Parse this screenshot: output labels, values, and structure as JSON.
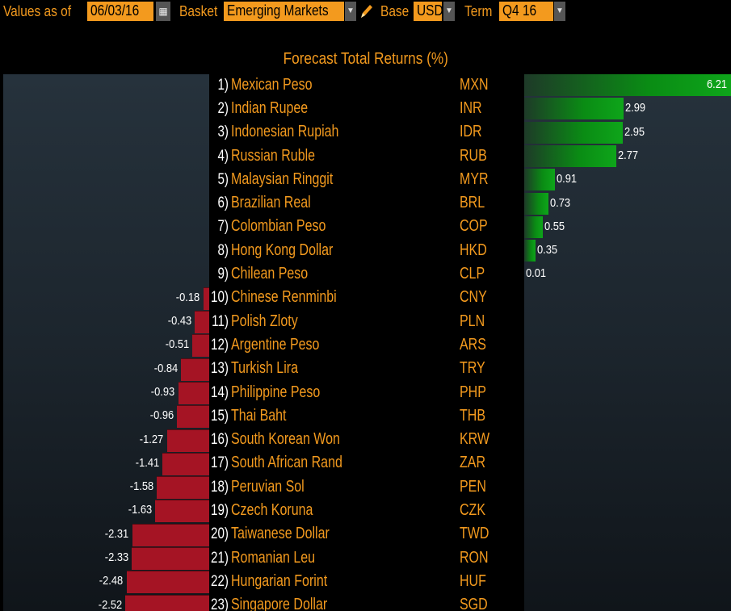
{
  "toolbar": {
    "values_as_of_label": "Values as of",
    "date_value": "06/03/16",
    "basket_label": "Basket",
    "basket_value": "Emerging Markets",
    "base_label": "Base",
    "base_value": "USD",
    "term_label": "Term",
    "term_value": "Q4 16",
    "dropdown_glyph": "▼",
    "calendar_glyph": "▦"
  },
  "title": "Forecast Total Returns (%)",
  "colors": {
    "accent": "#f39a1e",
    "positive": "#0ea51a",
    "negative": "#a51424",
    "panel": "#1c252d"
  },
  "chart_data": {
    "type": "bar",
    "title": "Forecast Total Returns (%)",
    "categories": [
      "Mexican Peso",
      "Indian Rupee",
      "Indonesian Rupiah",
      "Russian Ruble",
      "Malaysian Ringgit",
      "Brazilian Real",
      "Colombian Peso",
      "Hong Kong Dollar",
      "Chilean Peso",
      "Chinese Renminbi",
      "Polish Zloty",
      "Argentine Peso",
      "Turkish Lira",
      "Philippine Peso",
      "Thai Baht",
      "South Korean Won",
      "South African Rand",
      "Peruvian Sol",
      "Czech Koruna",
      "Taiwanese Dollar",
      "Romanian Leu",
      "Hungarian Forint",
      "Singapore Dollar"
    ],
    "codes": [
      "MXN",
      "INR",
      "IDR",
      "RUB",
      "MYR",
      "BRL",
      "COP",
      "HKD",
      "CLP",
      "CNY",
      "PLN",
      "ARS",
      "TRY",
      "PHP",
      "THB",
      "KRW",
      "ZAR",
      "PEN",
      "CZK",
      "TWD",
      "RON",
      "HUF",
      "SGD"
    ],
    "ranks": [
      "1)",
      "2)",
      "3)",
      "4)",
      "5)",
      "6)",
      "7)",
      "8)",
      "9)",
      "10)",
      "11)",
      "12)",
      "13)",
      "14)",
      "15)",
      "16)",
      "17)",
      "18)",
      "19)",
      "20)",
      "21)",
      "22)",
      "23)"
    ],
    "values": [
      6.21,
      2.99,
      2.95,
      2.77,
      0.91,
      0.73,
      0.55,
      0.35,
      0.01,
      -0.18,
      -0.43,
      -0.51,
      -0.84,
      -0.93,
      -0.96,
      -1.27,
      -1.41,
      -1.58,
      -1.63,
      -2.31,
      -2.33,
      -2.48,
      -2.52
    ],
    "labels": [
      "6.21",
      "2.99",
      "2.95",
      "2.77",
      "0.91",
      "0.73",
      "0.55",
      "0.35",
      "0.01",
      "-0.18",
      "-0.43",
      "-0.51",
      "-0.84",
      "-0.93",
      "-0.96",
      "-1.27",
      "-1.41",
      "-1.58",
      "-1.63",
      "-2.31",
      "-2.33",
      "-2.48",
      "-2.52"
    ]
  }
}
